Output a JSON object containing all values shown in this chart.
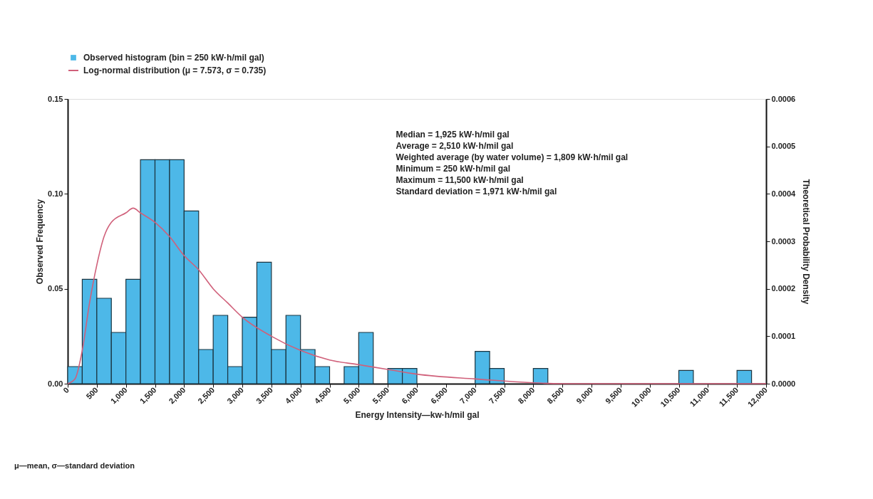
{
  "chart_data": {
    "type": "histogram",
    "xlabel": "Energy Intensity—kw·h/mil gal",
    "ylabel": "Observed Frequency",
    "y2label": "Theoretical Probability Density",
    "bins": [
      0,
      250,
      500,
      750,
      1000,
      1250,
      1500,
      1750,
      2000,
      2250,
      2500,
      2750,
      3000,
      3250,
      3500,
      3750,
      4000,
      4250,
      4500,
      4750,
      5000,
      5250,
      5500,
      5750,
      6000,
      6250,
      6500,
      6750,
      7000,
      7250,
      7500,
      7750,
      8000,
      8250,
      8500,
      8750,
      9000,
      9250,
      9500,
      9750,
      10000,
      10250,
      10500,
      10750,
      11000,
      11250,
      11500,
      11750,
      12000
    ],
    "series": [
      {
        "name": "Observed histogram (bin = 250 kW·h/mil gal)",
        "color": "#4db8e8",
        "values": [
          0.009,
          0.055,
          0.045,
          0.027,
          0.055,
          0.118,
          0.118,
          0.118,
          0.091,
          0.018,
          0.036,
          0.009,
          0.035,
          0.064,
          0.018,
          0.036,
          0.018,
          0.009,
          0,
          0.009,
          0.027,
          0,
          0.008,
          0.008,
          0,
          0,
          0,
          0,
          0.017,
          0.008,
          0,
          0,
          0.008,
          0,
          0,
          0,
          0,
          0,
          0,
          0,
          0,
          0,
          0.007,
          0,
          0,
          0,
          0.007,
          0
        ]
      },
      {
        "name": "Log-normal distribution (μ = 7.573, σ = 0.735)",
        "type": "line",
        "axis": "y2",
        "color": "#d0607a",
        "x": [
          0,
          125,
          250,
          375,
          500,
          625,
          750,
          1000,
          1125,
          1250,
          1500,
          1750,
          2000,
          2250,
          2500,
          2750,
          3000,
          3500,
          4000,
          4500,
          5000,
          5500,
          6000,
          7000,
          8500,
          12000
        ],
        "values": [
          0,
          1e-05,
          7e-05,
          0.00017,
          0.00025,
          0.00031,
          0.00034,
          0.00036,
          0.00037,
          0.00036,
          0.00034,
          0.00031,
          0.00027,
          0.00024,
          0.0002,
          0.00017,
          0.00014,
          0.0001,
          7e-05,
          5e-05,
          4e-05,
          3e-05,
          2e-05,
          1e-05,
          0,
          0
        ]
      }
    ],
    "xlim": [
      0,
      12000
    ],
    "xticks": [
      0,
      500,
      {
        "value": 1000,
        "label": "1,000"
      },
      {
        "value": 1500,
        "label": "1,500"
      },
      {
        "value": 2000,
        "label": "2,000"
      },
      {
        "value": 2500,
        "label": "2,500"
      },
      {
        "value": 3000,
        "label": "3,000"
      },
      {
        "value": 3500,
        "label": "3,500"
      },
      {
        "value": 4000,
        "label": "4,000"
      },
      {
        "value": 4500,
        "label": "4,500"
      },
      {
        "value": 5000,
        "label": "5,000"
      },
      {
        "value": 5500,
        "label": "5,500"
      },
      {
        "value": 6000,
        "label": "6,000"
      },
      {
        "value": 6500,
        "label": "6,500"
      },
      {
        "value": 7000,
        "label": "7,000"
      },
      {
        "value": 7500,
        "label": "7,500"
      },
      {
        "value": 8000,
        "label": "8,000"
      },
      {
        "value": 8500,
        "label": "8,500"
      },
      {
        "value": 9000,
        "label": "9,000"
      },
      {
        "value": 9500,
        "label": "9,500"
      },
      {
        "value": 10000,
        "label": "10,000"
      },
      {
        "value": 10500,
        "label": "10,500"
      },
      {
        "value": 11000,
        "label": "11,000"
      },
      {
        "value": 11500,
        "label": "11,500"
      },
      {
        "value": 12000,
        "label": "12,000"
      }
    ],
    "ylim": [
      0,
      0.15
    ],
    "yticks": [
      {
        "value": 0,
        "label": "0.00"
      },
      {
        "value": 0.05,
        "label": "0.05"
      },
      {
        "value": 0.1,
        "label": "0.10"
      },
      {
        "value": 0.15,
        "label": "0.15"
      }
    ],
    "y2lim": [
      0,
      0.0006
    ],
    "y2ticks": [
      {
        "value": 0,
        "label": "0.0000"
      },
      {
        "value": 0.0001,
        "label": "0.0001"
      },
      {
        "value": 0.0002,
        "label": "0.0002"
      },
      {
        "value": 0.0003,
        "label": "0.0003"
      },
      {
        "value": 0.0004,
        "label": "0.0004"
      },
      {
        "value": 0.0005,
        "label": "0.0005"
      },
      {
        "value": 0.0006,
        "label": "0.0006"
      }
    ],
    "grid": false,
    "legend": "top left",
    "annotations": [
      "Median = 1,925 kW·h/mil gal\nAverage =  2,510 kW·h/mil gal\nWeighted average (by water volume) = 1,809 kW·h/mil gal\nMinimum = 250 kW·h/mil gal\nMaximum = 11,500 kW·h/mil gal\nStandard deviation = 1,971 kW·h/mil gal",
      "μ—mean, σ—standard deviation"
    ]
  }
}
